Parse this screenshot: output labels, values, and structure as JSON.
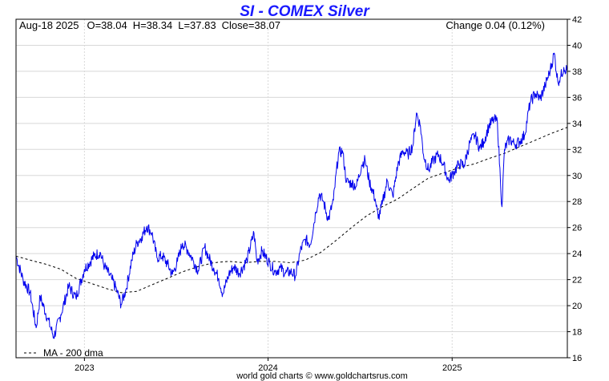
{
  "chart_data": {
    "type": "line",
    "title": "SI  -  COMEX Silver",
    "header": {
      "date": "Aug-18  2025",
      "open": "O=38.04",
      "high": "H=38.34",
      "low": "L=37.83",
      "close": "Close=38.07",
      "change": "Change 0.04 (0.12%)"
    },
    "ylim": [
      16,
      42
    ],
    "yticks": [
      "16",
      "18",
      "20",
      "22",
      "24",
      "26",
      "28",
      "30",
      "32",
      "34",
      "36",
      "38",
      "40",
      "42"
    ],
    "xticks": [
      "2023",
      "2024",
      "2025"
    ],
    "grid": true,
    "legend": {
      "position": "bottom-left",
      "label": "MA - 200 dma"
    },
    "credit": "world gold charts © www.goldchartsrus.com",
    "colors": {
      "price": "#0000ee",
      "ma": "#000000",
      "title": "#1a1aff",
      "grid": "#d8d8d8"
    },
    "series": [
      {
        "name": "Price",
        "style": "solid",
        "points": [
          [
            "2022-08-18",
            23.8
          ],
          [
            "2022-09-01",
            22.0
          ],
          [
            "2022-09-15",
            21.0
          ],
          [
            "2022-09-27",
            18.3
          ],
          [
            "2022-10-05",
            20.7
          ],
          [
            "2022-10-20",
            19.0
          ],
          [
            "2022-11-01",
            17.6
          ],
          [
            "2022-11-15",
            19.3
          ],
          [
            "2022-12-01",
            21.5
          ],
          [
            "2022-12-15",
            20.6
          ],
          [
            "2023-01-01",
            22.8
          ],
          [
            "2023-01-20",
            23.8
          ],
          [
            "2023-02-01",
            24.1
          ],
          [
            "2023-02-10",
            23.0
          ],
          [
            "2023-02-25",
            22.0
          ],
          [
            "2023-03-06",
            21.2
          ],
          [
            "2023-03-15",
            20.1
          ],
          [
            "2023-03-25",
            21.3
          ],
          [
            "2023-04-05",
            23.5
          ],
          [
            "2023-04-15",
            24.8
          ],
          [
            "2023-04-25",
            25.3
          ],
          [
            "2023-05-05",
            26.1
          ],
          [
            "2023-05-15",
            25.6
          ],
          [
            "2023-05-25",
            23.7
          ],
          [
            "2023-06-05",
            23.8
          ],
          [
            "2023-06-15",
            23.2
          ],
          [
            "2023-06-25",
            22.4
          ],
          [
            "2023-07-05",
            23.4
          ],
          [
            "2023-07-15",
            24.8
          ],
          [
            "2023-07-25",
            24.3
          ],
          [
            "2023-08-05",
            23.5
          ],
          [
            "2023-08-15",
            22.7
          ],
          [
            "2023-08-28",
            24.5
          ],
          [
            "2023-09-05",
            23.7
          ],
          [
            "2023-09-15",
            22.9
          ],
          [
            "2023-09-25",
            22.1
          ],
          [
            "2023-10-03",
            20.9
          ],
          [
            "2023-10-15",
            22.4
          ],
          [
            "2023-10-25",
            23.0
          ],
          [
            "2023-11-05",
            22.5
          ],
          [
            "2023-11-20",
            23.5
          ],
          [
            "2023-12-04",
            25.6
          ],
          [
            "2023-12-10",
            23.4
          ],
          [
            "2023-12-20",
            24.2
          ],
          [
            "2024-01-05",
            23.2
          ],
          [
            "2024-01-15",
            22.6
          ],
          [
            "2024-01-25",
            22.9
          ],
          [
            "2024-02-05",
            22.5
          ],
          [
            "2024-02-15",
            22.6
          ],
          [
            "2024-02-25",
            22.3
          ],
          [
            "2024-03-05",
            24.2
          ],
          [
            "2024-03-15",
            25.1
          ],
          [
            "2024-03-25",
            24.7
          ],
          [
            "2024-04-05",
            27.2
          ],
          [
            "2024-04-12",
            28.6
          ],
          [
            "2024-04-20",
            28.0
          ],
          [
            "2024-04-30",
            26.6
          ],
          [
            "2024-05-10",
            28.1
          ],
          [
            "2024-05-20",
            31.7
          ],
          [
            "2024-05-28",
            31.9
          ],
          [
            "2024-06-05",
            29.5
          ],
          [
            "2024-06-15",
            29.4
          ],
          [
            "2024-06-25",
            29.2
          ],
          [
            "2024-07-05",
            30.8
          ],
          [
            "2024-07-12",
            31.2
          ],
          [
            "2024-07-20",
            29.6
          ],
          [
            "2024-08-01",
            28.2
          ],
          [
            "2024-08-07",
            26.7
          ],
          [
            "2024-08-15",
            27.8
          ],
          [
            "2024-08-25",
            29.6
          ],
          [
            "2024-09-05",
            28.4
          ],
          [
            "2024-09-15",
            30.8
          ],
          [
            "2024-09-25",
            31.9
          ],
          [
            "2024-10-05",
            31.6
          ],
          [
            "2024-10-15",
            32.3
          ],
          [
            "2024-10-22",
            34.8
          ],
          [
            "2024-10-30",
            33.8
          ],
          [
            "2024-11-05",
            31.6
          ],
          [
            "2024-11-15",
            30.4
          ],
          [
            "2024-11-25",
            31.2
          ],
          [
            "2024-12-05",
            31.6
          ],
          [
            "2024-12-15",
            30.8
          ],
          [
            "2024-12-25",
            29.6
          ],
          [
            "2025-01-05",
            30.3
          ],
          [
            "2025-01-15",
            30.9
          ],
          [
            "2025-01-25",
            30.8
          ],
          [
            "2025-02-05",
            32.5
          ],
          [
            "2025-02-15",
            33.1
          ],
          [
            "2025-02-25",
            32.1
          ],
          [
            "2025-03-05",
            32.6
          ],
          [
            "2025-03-15",
            33.8
          ],
          [
            "2025-03-25",
            34.3
          ],
          [
            "2025-04-01",
            34.1
          ],
          [
            "2025-04-07",
            29.6
          ],
          [
            "2025-04-10",
            27.6
          ],
          [
            "2025-04-15",
            32.0
          ],
          [
            "2025-04-25",
            32.8
          ],
          [
            "2025-05-05",
            32.4
          ],
          [
            "2025-05-15",
            32.6
          ],
          [
            "2025-05-25",
            33.1
          ],
          [
            "2025-06-05",
            35.6
          ],
          [
            "2025-06-15",
            36.3
          ],
          [
            "2025-06-25",
            35.9
          ],
          [
            "2025-07-05",
            36.9
          ],
          [
            "2025-07-15",
            38.1
          ],
          [
            "2025-07-23",
            39.4
          ],
          [
            "2025-07-30",
            37.2
          ],
          [
            "2025-08-05",
            37.6
          ],
          [
            "2025-08-11",
            38.3
          ],
          [
            "2025-08-18",
            38.07
          ]
        ]
      },
      {
        "name": "MA - 200 dma",
        "style": "dashed",
        "points": [
          [
            "2022-08-18",
            23.8
          ],
          [
            "2022-09-15",
            23.5
          ],
          [
            "2022-10-15",
            23.2
          ],
          [
            "2022-11-15",
            22.8
          ],
          [
            "2022-12-15",
            22.1
          ],
          [
            "2023-01-15",
            21.7
          ],
          [
            "2023-02-15",
            21.3
          ],
          [
            "2023-03-15",
            21.0
          ],
          [
            "2023-04-15",
            21.1
          ],
          [
            "2023-05-15",
            21.6
          ],
          [
            "2023-06-15",
            22.1
          ],
          [
            "2023-07-15",
            22.6
          ],
          [
            "2023-08-15",
            23.0
          ],
          [
            "2023-09-15",
            23.3
          ],
          [
            "2023-10-15",
            23.4
          ],
          [
            "2023-11-15",
            23.3
          ],
          [
            "2023-12-15",
            23.4
          ],
          [
            "2024-01-15",
            23.4
          ],
          [
            "2024-02-15",
            23.3
          ],
          [
            "2024-03-15",
            23.5
          ],
          [
            "2024-04-15",
            24.1
          ],
          [
            "2024-05-15",
            25.0
          ],
          [
            "2024-06-15",
            26.0
          ],
          [
            "2024-07-15",
            26.9
          ],
          [
            "2024-08-15",
            27.6
          ],
          [
            "2024-09-15",
            28.2
          ],
          [
            "2024-10-15",
            29.0
          ],
          [
            "2024-11-15",
            29.8
          ],
          [
            "2024-12-15",
            30.2
          ],
          [
            "2025-01-15",
            30.6
          ],
          [
            "2025-02-15",
            30.9
          ],
          [
            "2025-03-15",
            31.3
          ],
          [
            "2025-04-15",
            31.7
          ],
          [
            "2025-05-15",
            32.2
          ],
          [
            "2025-06-15",
            32.7
          ],
          [
            "2025-07-15",
            33.2
          ],
          [
            "2025-08-18",
            33.7
          ]
        ]
      }
    ]
  }
}
